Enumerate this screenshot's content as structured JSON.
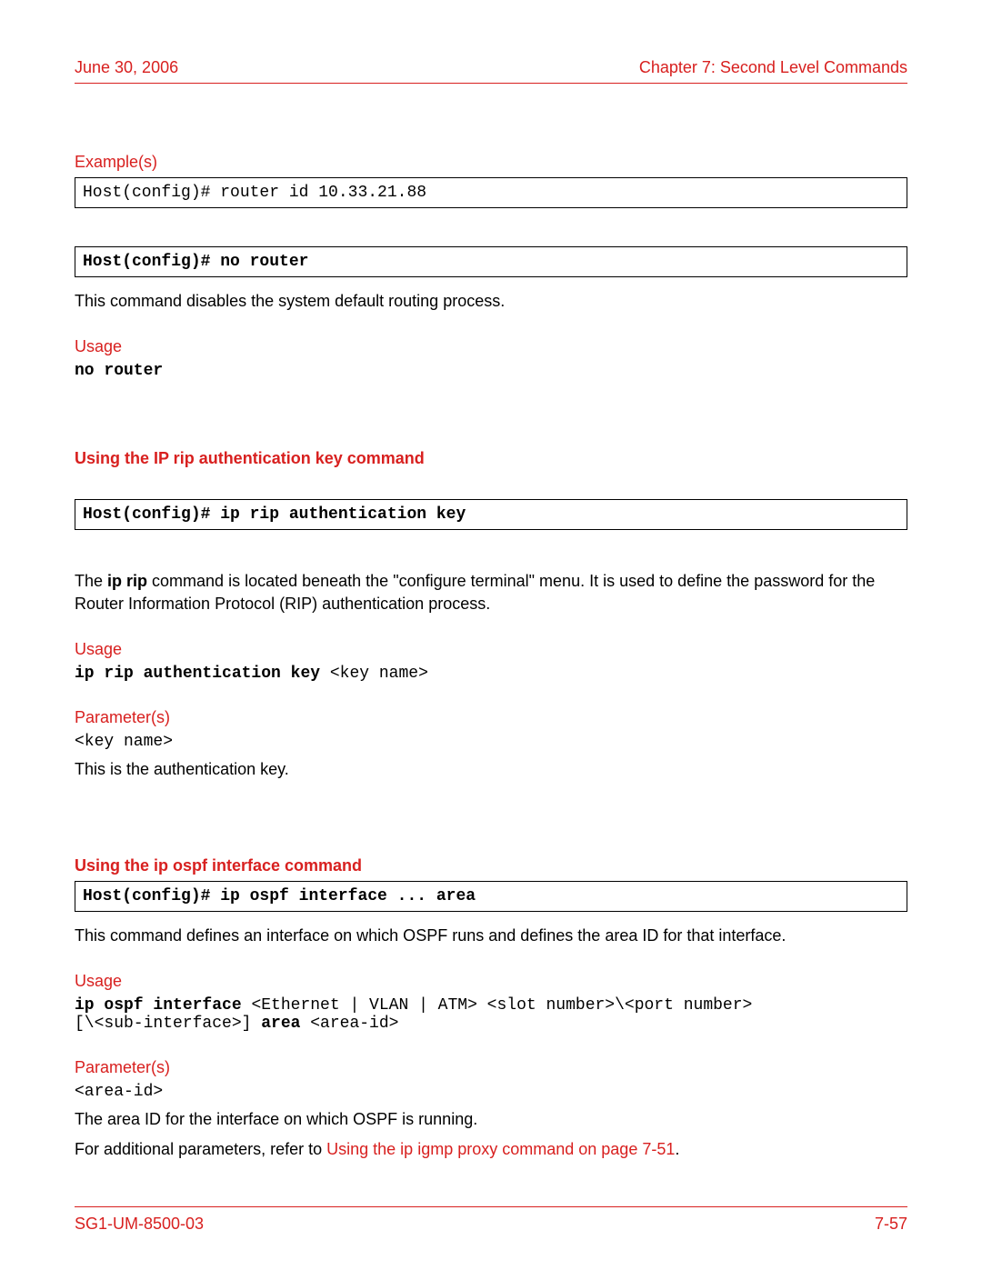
{
  "colors": {
    "accent_red": "#d8201f",
    "text_black": "#000000",
    "background": "#ffffff",
    "border_black": "#000000"
  },
  "header": {
    "date": "June 30, 2006",
    "chapter": "Chapter 7: Second Level Commands"
  },
  "examples": {
    "heading": "Example(s)",
    "code": "Host(config)# router id 10.33.21.88"
  },
  "no_router": {
    "codebox": "Host(config)# no router",
    "desc": "This command disables the system default routing process.",
    "usage_heading": "Usage",
    "usage_code": "no router"
  },
  "ip_rip": {
    "section_title": "Using the IP rip authentication key command",
    "codebox": "Host(config)# ip rip authentication key",
    "desc_prefix": "The ",
    "desc_bold": "ip rip",
    "desc_rest": " command is located beneath the \"configure terminal\" menu. It is used to define the password for the Router Information Protocol (RIP) authentication process.",
    "usage_heading": "Usage",
    "usage_bold": "ip rip authentication key ",
    "usage_rest": "<key name>",
    "param_heading": "Parameter(s)",
    "param_name": "<key name>",
    "param_desc": "This is the authentication key."
  },
  "ip_ospf": {
    "section_title": "Using the ip ospf interface command",
    "codebox": "Host(config)# ip ospf interface ... area",
    "desc": "This command defines an interface on which OSPF runs and defines the area ID for that interface.",
    "usage_heading": "Usage",
    "usage_bold1": "ip ospf interface ",
    "usage_mid": "<Ethernet | VLAN | ATM> <slot number>\\<port number>\n[\\<sub-interface>] ",
    "usage_bold2": "area ",
    "usage_end": "<area-id>",
    "param_heading": "Parameter(s)",
    "param_name": "<area-id>",
    "param_desc": "The area ID for the interface on which OSPF is running.",
    "xref_prefix": "For additional parameters, refer to  ",
    "xref_link": "Using the ip igmp proxy command  on page 7-51",
    "xref_suffix": "."
  },
  "footer": {
    "doc_id": "SG1-UM-8500-03",
    "page": "7-57"
  }
}
